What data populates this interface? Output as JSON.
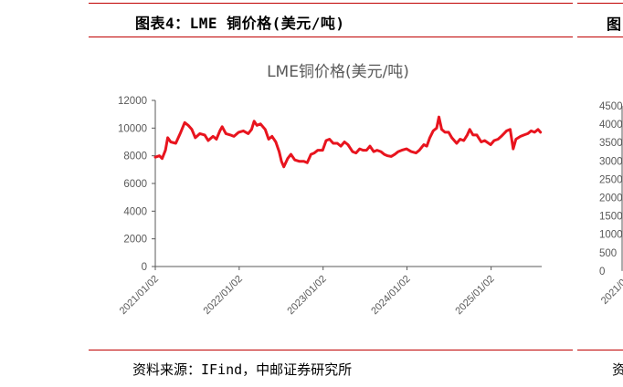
{
  "caption": "图表4：LME 铜价格(美元/吨)",
  "source": "资料来源：IFind，中邮证券研究所",
  "right_panel": {
    "caption_fragment": "图",
    "source_fragment": "资",
    "y_ticks": [
      "4500",
      "4000",
      "3500",
      "3000",
      "2500",
      "2000",
      "1500",
      "1000",
      "500",
      "0"
    ],
    "x_tick": "2021/0"
  },
  "chart_data": {
    "type": "line",
    "title": "LME铜价格(美元/吨)",
    "xlabel": "",
    "ylabel": "",
    "ylim": [
      0,
      12000
    ],
    "yticks": [
      0,
      2000,
      4000,
      6000,
      8000,
      10000,
      12000
    ],
    "xtick_labels": [
      "2021/01/02",
      "2022/01/02",
      "2023/01/02",
      "2024/01/02",
      "2025/01/02"
    ],
    "grid": false,
    "legend": "none",
    "series": [
      {
        "color": "#e8141e",
        "points": [
          [
            "2021-01-02",
            7900
          ],
          [
            "2021-01-20",
            8000
          ],
          [
            "2021-02-01",
            7800
          ],
          [
            "2021-02-15",
            8400
          ],
          [
            "2021-02-25",
            9300
          ],
          [
            "2021-03-10",
            9000
          ],
          [
            "2021-04-01",
            8900
          ],
          [
            "2021-04-20",
            9600
          ],
          [
            "2021-05-10",
            10400
          ],
          [
            "2021-05-25",
            10200
          ],
          [
            "2021-06-10",
            9900
          ],
          [
            "2021-06-25",
            9300
          ],
          [
            "2021-07-15",
            9600
          ],
          [
            "2021-08-05",
            9500
          ],
          [
            "2021-08-20",
            9100
          ],
          [
            "2021-09-10",
            9400
          ],
          [
            "2021-09-25",
            9200
          ],
          [
            "2021-10-10",
            9800
          ],
          [
            "2021-10-20",
            10100
          ],
          [
            "2021-11-05",
            9600
          ],
          [
            "2021-11-25",
            9500
          ],
          [
            "2021-12-10",
            9400
          ],
          [
            "2021-12-31",
            9700
          ],
          [
            "2022-01-20",
            9800
          ],
          [
            "2022-02-10",
            9600
          ],
          [
            "2022-02-25",
            9900
          ],
          [
            "2022-03-08",
            10500
          ],
          [
            "2022-03-20",
            10200
          ],
          [
            "2022-04-05",
            10300
          ],
          [
            "2022-04-25",
            9900
          ],
          [
            "2022-05-10",
            9200
          ],
          [
            "2022-05-25",
            9400
          ],
          [
            "2022-06-10",
            9000
          ],
          [
            "2022-06-25",
            8300
          ],
          [
            "2022-07-05",
            7600
          ],
          [
            "2022-07-15",
            7200
          ],
          [
            "2022-08-01",
            7800
          ],
          [
            "2022-08-15",
            8100
          ],
          [
            "2022-09-01",
            7700
          ],
          [
            "2022-09-20",
            7600
          ],
          [
            "2022-10-10",
            7600
          ],
          [
            "2022-10-25",
            7500
          ],
          [
            "2022-11-10",
            8100
          ],
          [
            "2022-11-25",
            8200
          ],
          [
            "2022-12-10",
            8400
          ],
          [
            "2022-12-31",
            8400
          ],
          [
            "2023-01-15",
            9100
          ],
          [
            "2023-01-30",
            9200
          ],
          [
            "2023-02-15",
            8900
          ],
          [
            "2023-03-05",
            8900
          ],
          [
            "2023-03-20",
            8700
          ],
          [
            "2023-04-05",
            9000
          ],
          [
            "2023-04-20",
            8800
          ],
          [
            "2023-05-10",
            8300
          ],
          [
            "2023-05-25",
            8200
          ],
          [
            "2023-06-10",
            8500
          ],
          [
            "2023-06-25",
            8400
          ],
          [
            "2023-07-10",
            8400
          ],
          [
            "2023-07-25",
            8700
          ],
          [
            "2023-08-10",
            8300
          ],
          [
            "2023-08-25",
            8400
          ],
          [
            "2023-09-10",
            8300
          ],
          [
            "2023-09-25",
            8100
          ],
          [
            "2023-10-10",
            8000
          ],
          [
            "2023-10-25",
            7950
          ],
          [
            "2023-11-10",
            8100
          ],
          [
            "2023-11-25",
            8300
          ],
          [
            "2023-12-10",
            8400
          ],
          [
            "2023-12-31",
            8500
          ],
          [
            "2024-01-20",
            8300
          ],
          [
            "2024-02-10",
            8200
          ],
          [
            "2024-02-25",
            8400
          ],
          [
            "2024-03-15",
            8800
          ],
          [
            "2024-03-28",
            8700
          ],
          [
            "2024-04-10",
            9300
          ],
          [
            "2024-04-25",
            9800
          ],
          [
            "2024-05-10",
            10000
          ],
          [
            "2024-05-20",
            10800
          ],
          [
            "2024-06-01",
            9900
          ],
          [
            "2024-06-15",
            9700
          ],
          [
            "2024-07-01",
            9700
          ],
          [
            "2024-07-15",
            9300
          ],
          [
            "2024-08-05",
            8900
          ],
          [
            "2024-08-20",
            9200
          ],
          [
            "2024-09-05",
            9100
          ],
          [
            "2024-09-20",
            9500
          ],
          [
            "2024-10-01",
            9900
          ],
          [
            "2024-10-15",
            9500
          ],
          [
            "2024-11-01",
            9500
          ],
          [
            "2024-11-20",
            9000
          ],
          [
            "2024-12-05",
            9100
          ],
          [
            "2024-12-31",
            8800
          ],
          [
            "2025-01-15",
            9100
          ],
          [
            "2025-02-01",
            9200
          ],
          [
            "2025-02-15",
            9400
          ],
          [
            "2025-03-10",
            9800
          ],
          [
            "2025-03-26",
            9900
          ],
          [
            "2025-04-08",
            8500
          ],
          [
            "2025-04-20",
            9200
          ],
          [
            "2025-05-10",
            9400
          ],
          [
            "2025-05-25",
            9500
          ],
          [
            "2025-06-10",
            9600
          ],
          [
            "2025-06-25",
            9800
          ],
          [
            "2025-07-10",
            9700
          ],
          [
            "2025-07-25",
            9900
          ],
          [
            "2025-08-05",
            9700
          ]
        ]
      }
    ]
  }
}
